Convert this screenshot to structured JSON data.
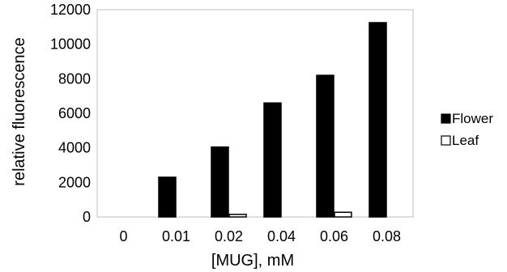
{
  "chart_data": {
    "type": "bar",
    "categories": [
      "0",
      "0.01",
      "0.02",
      "0.04",
      "0.06",
      "0.08"
    ],
    "series": [
      {
        "name": "Flower",
        "values": [
          0,
          2300,
          4050,
          6600,
          8200,
          11250
        ],
        "fill": "#000000",
        "stroke": "#000000"
      },
      {
        "name": "Leaf",
        "values": [
          0,
          0,
          150,
          0,
          270,
          0
        ],
        "fill": "#ffffff",
        "stroke": "#000000"
      }
    ],
    "xlabel": "[MUG], mM",
    "ylabel": "relative fluorescence",
    "ylim": [
      0,
      12000
    ],
    "yticks": [
      "0",
      "2000",
      "4000",
      "6000",
      "8000",
      "10000",
      "12000"
    ],
    "grid": false,
    "legend_position": "right"
  }
}
